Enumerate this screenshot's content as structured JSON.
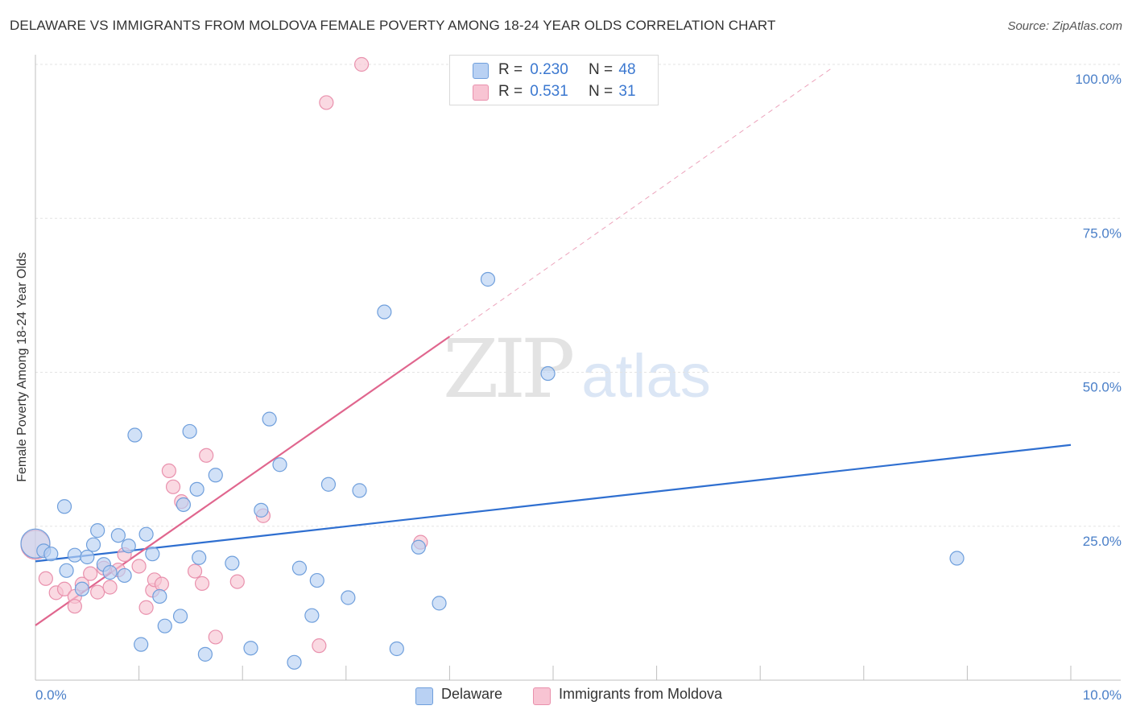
{
  "header": {
    "title": "DELAWARE VS IMMIGRANTS FROM MOLDOVA FEMALE POVERTY AMONG 18-24 YEAR OLDS CORRELATION CHART",
    "source": "Source: ZipAtlas.com"
  },
  "watermark": {
    "zip": "ZIP",
    "atlas": "atlas"
  },
  "legend_top": {
    "rows": [
      {
        "r_label": "R =",
        "r_value": "0.230",
        "n_label": "N =",
        "n_value": "48"
      },
      {
        "r_label": "R =",
        "r_value": "0.531",
        "n_label": "N =",
        "n_value": "31"
      }
    ]
  },
  "legend_bottom": {
    "items": [
      {
        "label": "Delaware"
      },
      {
        "label": "Immigrants from Moldova"
      }
    ]
  },
  "colors": {
    "delaware_fill": "#b9d1f3",
    "delaware_stroke": "#6f9fdc",
    "delaware_line": "#2f6fd0",
    "moldova_fill": "#f8c4d3",
    "moldova_stroke": "#e991ad",
    "moldova_line": "#e0668e",
    "grid": "#e3e3e3",
    "axis_text": "#4a7fc8"
  },
  "chart_data": {
    "type": "scatter",
    "title": "DELAWARE VS IMMIGRANTS FROM MOLDOVA FEMALE POVERTY AMONG 18-24 YEAR OLDS CORRELATION CHART",
    "xlabel": "",
    "ylabel": "Female Poverty Among 18-24 Year Olds",
    "xlim": [
      0,
      10
    ],
    "ylim": [
      0,
      100
    ],
    "x_tick_labels": [
      "0.0%",
      "10.0%"
    ],
    "y_ticks": [
      25,
      50,
      75,
      100
    ],
    "y_tick_labels": [
      "25.0%",
      "50.0%",
      "75.0%",
      "100.0%"
    ],
    "grid": true,
    "series": [
      {
        "name": "Delaware",
        "r": 0.23,
        "n": 48,
        "trend": {
          "x0": 0,
          "y0": 19.3,
          "x1": 10,
          "y1": 38.2,
          "style": "solid"
        },
        "points": [
          {
            "x": 0.0,
            "y": 22.2,
            "big": true
          },
          {
            "x": 0.08,
            "y": 21.0
          },
          {
            "x": 0.15,
            "y": 20.5
          },
          {
            "x": 0.28,
            "y": 28.2
          },
          {
            "x": 0.3,
            "y": 17.8
          },
          {
            "x": 0.38,
            "y": 20.3
          },
          {
            "x": 0.45,
            "y": 14.8
          },
          {
            "x": 0.5,
            "y": 20.0
          },
          {
            "x": 0.56,
            "y": 22.0
          },
          {
            "x": 0.6,
            "y": 24.3
          },
          {
            "x": 0.66,
            "y": 18.8
          },
          {
            "x": 0.72,
            "y": 17.5
          },
          {
            "x": 0.8,
            "y": 23.5
          },
          {
            "x": 0.86,
            "y": 17.0
          },
          {
            "x": 0.9,
            "y": 21.8
          },
          {
            "x": 0.96,
            "y": 39.8
          },
          {
            "x": 1.02,
            "y": 5.8
          },
          {
            "x": 1.07,
            "y": 23.7
          },
          {
            "x": 1.13,
            "y": 20.5
          },
          {
            "x": 1.2,
            "y": 13.6
          },
          {
            "x": 1.25,
            "y": 8.8
          },
          {
            "x": 1.4,
            "y": 10.4
          },
          {
            "x": 1.43,
            "y": 28.5
          },
          {
            "x": 1.49,
            "y": 40.4
          },
          {
            "x": 1.56,
            "y": 31.0
          },
          {
            "x": 1.58,
            "y": 19.9
          },
          {
            "x": 1.64,
            "y": 4.2
          },
          {
            "x": 1.74,
            "y": 33.3
          },
          {
            "x": 1.9,
            "y": 19.0
          },
          {
            "x": 2.08,
            "y": 5.2
          },
          {
            "x": 2.18,
            "y": 27.6
          },
          {
            "x": 2.26,
            "y": 42.4
          },
          {
            "x": 2.36,
            "y": 35.0
          },
          {
            "x": 2.5,
            "y": 2.9
          },
          {
            "x": 2.55,
            "y": 18.2
          },
          {
            "x": 2.67,
            "y": 10.5
          },
          {
            "x": 2.72,
            "y": 16.2
          },
          {
            "x": 2.83,
            "y": 31.8
          },
          {
            "x": 3.02,
            "y": 13.4
          },
          {
            "x": 3.13,
            "y": 30.8
          },
          {
            "x": 3.37,
            "y": 59.8
          },
          {
            "x": 3.49,
            "y": 5.1
          },
          {
            "x": 3.7,
            "y": 21.6
          },
          {
            "x": 3.9,
            "y": 12.5
          },
          {
            "x": 4.37,
            "y": 65.1
          },
          {
            "x": 4.95,
            "y": 49.8
          },
          {
            "x": 8.9,
            "y": 19.8
          }
        ]
      },
      {
        "name": "Immigrants from Moldova",
        "r": 0.531,
        "n": 31,
        "trend": {
          "x0": 0,
          "y0": 8.9,
          "x1": 4.0,
          "y1": 55.8,
          "dash_x1": 7.7,
          "dash_y1": 99.5
        },
        "points": [
          {
            "x": 0.0,
            "y": 22.0,
            "big": true
          },
          {
            "x": 0.1,
            "y": 16.5
          },
          {
            "x": 0.2,
            "y": 14.2
          },
          {
            "x": 0.28,
            "y": 14.8
          },
          {
            "x": 0.38,
            "y": 13.6
          },
          {
            "x": 0.38,
            "y": 12.0
          },
          {
            "x": 0.45,
            "y": 15.6
          },
          {
            "x": 0.53,
            "y": 17.3
          },
          {
            "x": 0.6,
            "y": 14.3
          },
          {
            "x": 0.66,
            "y": 18.2
          },
          {
            "x": 0.72,
            "y": 15.1
          },
          {
            "x": 0.8,
            "y": 17.9
          },
          {
            "x": 0.86,
            "y": 20.4
          },
          {
            "x": 1.0,
            "y": 18.5
          },
          {
            "x": 1.07,
            "y": 11.8
          },
          {
            "x": 1.13,
            "y": 14.6
          },
          {
            "x": 1.15,
            "y": 16.3
          },
          {
            "x": 1.22,
            "y": 15.6
          },
          {
            "x": 1.29,
            "y": 34.0
          },
          {
            "x": 1.33,
            "y": 31.4
          },
          {
            "x": 1.41,
            "y": 29.0
          },
          {
            "x": 1.54,
            "y": 17.7
          },
          {
            "x": 1.61,
            "y": 15.7
          },
          {
            "x": 1.65,
            "y": 36.5
          },
          {
            "x": 1.74,
            "y": 7.0
          },
          {
            "x": 1.95,
            "y": 16.0
          },
          {
            "x": 2.2,
            "y": 26.7
          },
          {
            "x": 2.74,
            "y": 5.6
          },
          {
            "x": 3.15,
            "y": 100.0
          },
          {
            "x": 3.72,
            "y": 22.4
          },
          {
            "x": 2.81,
            "y": 93.8
          }
        ]
      }
    ]
  }
}
